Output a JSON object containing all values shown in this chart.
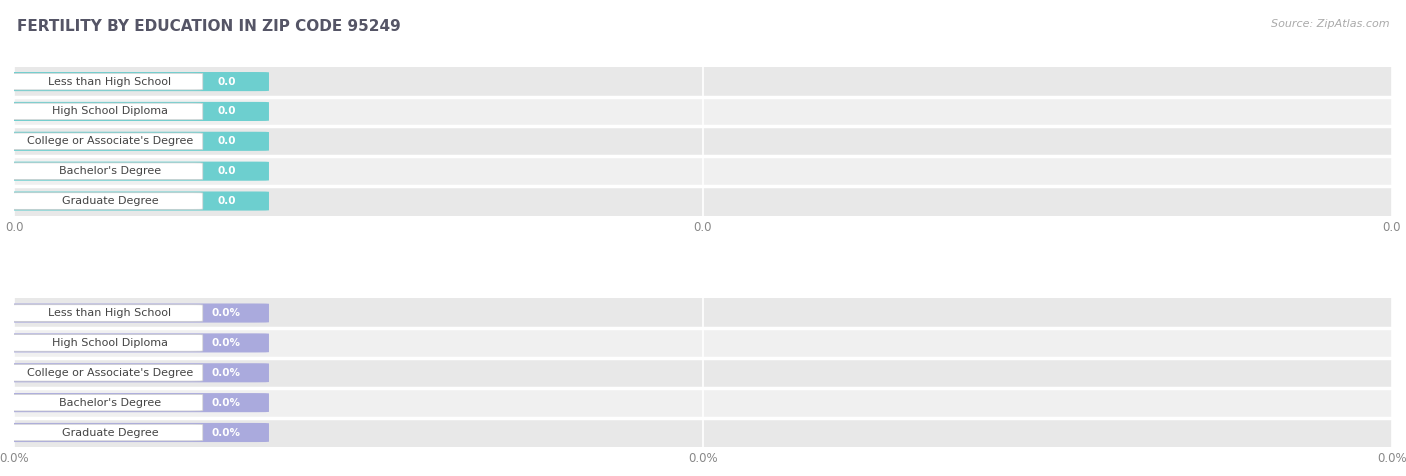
{
  "title": "FERTILITY BY EDUCATION IN ZIP CODE 95249",
  "source": "Source: ZipAtlas.com",
  "categories": [
    "Less than High School",
    "High School Diploma",
    "College or Associate's Degree",
    "Bachelor's Degree",
    "Graduate Degree"
  ],
  "top_values": [
    0.0,
    0.0,
    0.0,
    0.0,
    0.0
  ],
  "bottom_values": [
    0.0,
    0.0,
    0.0,
    0.0,
    0.0
  ],
  "top_bar_color": "#6DCFCF",
  "bottom_bar_color": "#AAAADD",
  "top_tick_labels": [
    "0.0",
    "0.0",
    "0.0"
  ],
  "bottom_tick_labels": [
    "0.0%",
    "0.0%",
    "0.0%"
  ],
  "row_bg_color": "#ebebeb",
  "row_alt_color": "#f2f2f2",
  "panel_bg": "#f5f5f5",
  "title_color": "#555566",
  "source_color": "#aaaaaa",
  "title_fontsize": 11,
  "label_fontsize": 8,
  "value_fontsize": 7.5,
  "tick_fontsize": 8.5
}
